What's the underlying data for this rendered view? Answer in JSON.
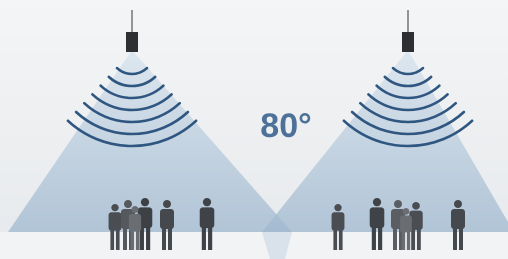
{
  "label": "80°"
}
